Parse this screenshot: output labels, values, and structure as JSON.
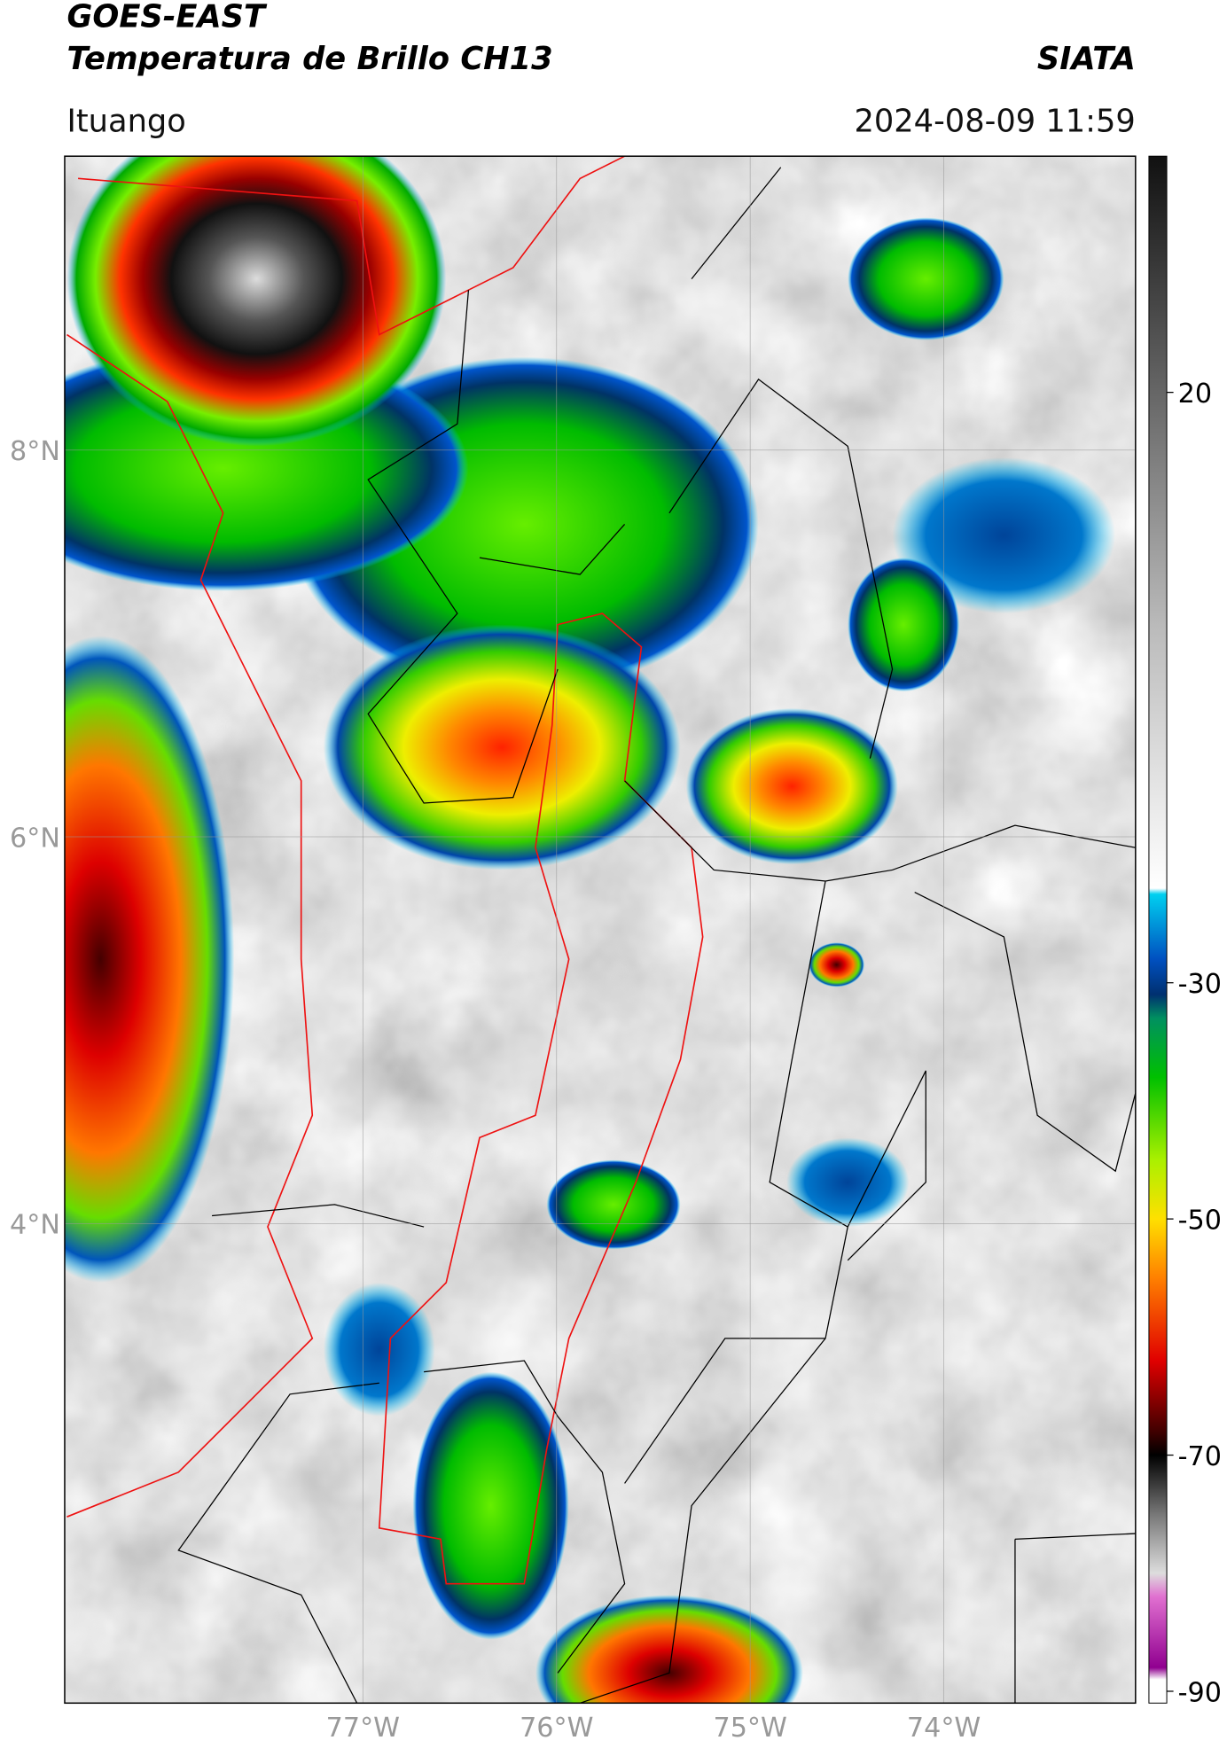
{
  "header": {
    "title": "GOES-EAST",
    "subtitle": "Temperatura de Brillo CH13",
    "source": "SIATA",
    "location": "Ituango",
    "datetime": "2024-08-09 11:59"
  },
  "map": {
    "lon_lim": [
      -78.54,
      -73.01
    ],
    "lat_lim": [
      1.52,
      9.52
    ],
    "lat_ticks": [
      {
        "value": 8,
        "label": "8°N"
      },
      {
        "value": 6,
        "label": "6°N"
      },
      {
        "value": 4,
        "label": "4°N"
      }
    ],
    "lon_ticks": [
      {
        "value": -77,
        "label": "77°W"
      },
      {
        "value": -76,
        "label": "76°W"
      },
      {
        "value": -75,
        "label": "75°W"
      },
      {
        "value": -74,
        "label": "74°W"
      }
    ]
  },
  "colorbar": {
    "clim": [
      -91,
      40
    ],
    "ticks": [
      20,
      -30,
      -50,
      -70,
      -90
    ],
    "colormap": [
      {
        "value": 40,
        "color": "#111111"
      },
      {
        "value": 20,
        "color": "#666666"
      },
      {
        "value": 0,
        "color": "#bbbbbb"
      },
      {
        "value": -22,
        "color": "#ffffff"
      },
      {
        "value": -22.5,
        "color": "#00d0f0"
      },
      {
        "value": -28,
        "color": "#0050c0"
      },
      {
        "value": -31,
        "color": "#003070"
      },
      {
        "value": -33,
        "color": "#009060"
      },
      {
        "value": -38,
        "color": "#00c000"
      },
      {
        "value": -45,
        "color": "#aaf000"
      },
      {
        "value": -50,
        "color": "#ffe000"
      },
      {
        "value": -55,
        "color": "#ff8000"
      },
      {
        "value": -62,
        "color": "#e00000"
      },
      {
        "value": -68,
        "color": "#400000"
      },
      {
        "value": -70,
        "color": "#000000"
      },
      {
        "value": -75,
        "color": "#777777"
      },
      {
        "value": -80,
        "color": "#dddddd"
      },
      {
        "value": -82,
        "color": "#e070d0"
      },
      {
        "value": -88,
        "color": "#900090"
      },
      {
        "value": -89,
        "color": "#ffffff"
      },
      {
        "value": -91,
        "color": "#ffffff"
      }
    ]
  }
}
